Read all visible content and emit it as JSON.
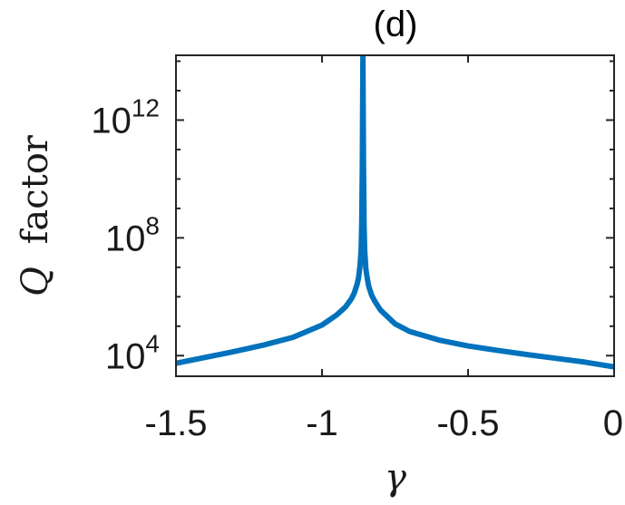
{
  "chart_data": {
    "type": "line",
    "title": "(d)",
    "xlabel": "γ",
    "ylabel_symbol": "Q",
    "ylabel_text": "factor",
    "xlim": [
      -1.5,
      0
    ],
    "ylim_log10": [
      3.3,
      14.2
    ],
    "yscale": "log",
    "grid": false,
    "x_ticks": [
      -1.5,
      -1,
      -0.5,
      0
    ],
    "x_tick_labels": [
      "-1.5",
      "-1",
      "-0.5",
      "0"
    ],
    "y_ticks_log10": [
      4,
      8,
      12
    ],
    "y_tick_base": "10",
    "y_tick_exponents": [
      "4",
      "8",
      "12"
    ],
    "line_color": "#0072BD",
    "series": [
      {
        "x": [
          -1.5,
          -1.4,
          -1.3,
          -1.2,
          -1.1,
          -1.0,
          -0.95,
          -0.92,
          -0.9,
          -0.89,
          -0.88,
          -0.875,
          -0.87,
          -0.866,
          -0.864,
          -0.862,
          -0.86,
          -0.858,
          -0.856,
          -0.854,
          -0.85,
          -0.845,
          -0.84,
          -0.83,
          -0.82,
          -0.8,
          -0.75,
          -0.7,
          -0.6,
          -0.5,
          -0.4,
          -0.3,
          -0.2,
          -0.1,
          0.0
        ],
        "log10_y": [
          3.74,
          3.94,
          4.14,
          4.36,
          4.62,
          5.04,
          5.38,
          5.65,
          5.92,
          6.12,
          6.42,
          6.64,
          7.05,
          7.6,
          8.5,
          10.5,
          14.2,
          10.5,
          8.4,
          7.6,
          6.95,
          6.62,
          6.35,
          6.05,
          5.86,
          5.55,
          5.08,
          4.82,
          4.53,
          4.33,
          4.18,
          4.04,
          3.91,
          3.78,
          3.62
        ]
      }
    ]
  }
}
